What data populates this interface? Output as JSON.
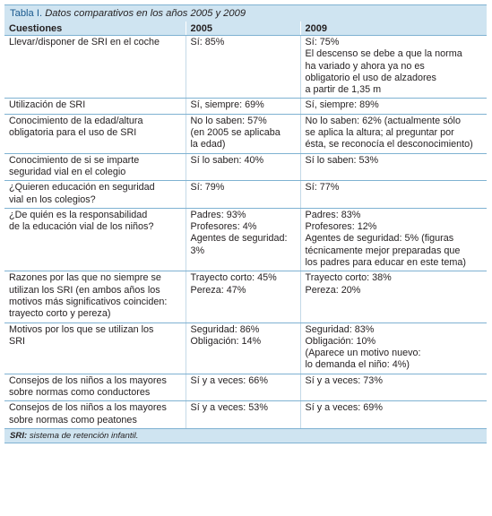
{
  "caption": {
    "label": "Tabla I.",
    "text": "Datos comparativos en los años 2005 y 2009"
  },
  "headers": [
    "Cuestiones",
    "2005",
    "2009"
  ],
  "rows": [
    {
      "question": [
        "Llevar/disponer de SRI en el coche"
      ],
      "y2005": [
        "Sí: 85%"
      ],
      "y2009": [
        "Sí: 75%",
        "El descenso se debe a que la norma",
        "ha variado y ahora ya no es",
        "obligatorio el uso de alzadores",
        "a partir de 1,35 m"
      ]
    },
    {
      "question": [
        "Utilización de SRI"
      ],
      "y2005": [
        "Sí, siempre: 69%"
      ],
      "y2009": [
        "Sí, siempre: 89%"
      ]
    },
    {
      "question": [
        "Conocimiento de la edad/altura",
        "obligatoria para el uso de SRI"
      ],
      "y2005": [
        "No lo saben: 57%",
        "(en 2005 se aplicaba",
        "la edad)"
      ],
      "y2009": [
        "No lo saben: 62% (actualmente sólo",
        "se aplica la altura; al preguntar por",
        "ésta, se reconocía el desconocimiento)"
      ]
    },
    {
      "question": [
        "Conocimiento de si se imparte",
        "seguridad vial en el colegio"
      ],
      "y2005": [
        "Sí lo saben: 40%"
      ],
      "y2009": [
        "Sí lo saben: 53%"
      ]
    },
    {
      "question": [
        "¿Quieren educación en seguridad",
        "vial en los colegios?"
      ],
      "y2005": [
        "Sí: 79%"
      ],
      "y2009": [
        "Sí: 77%"
      ]
    },
    {
      "question": [
        "¿De quién es la responsabilidad",
        "de la educación vial de los niños?"
      ],
      "y2005": [
        "Padres: 93%",
        "Profesores: 4%",
        "Agentes de seguridad:",
        "3%"
      ],
      "y2009": [
        "Padres: 83%",
        "Profesores: 12%",
        "Agentes de seguridad: 5% (figuras",
        "técnicamente mejor preparadas que",
        "los padres para educar en este tema)"
      ]
    },
    {
      "question": [
        "Razones por las que no siempre se",
        "utilizan los SRI (en ambos años los",
        "motivos más significativos coinciden:",
        "trayecto corto y pereza)"
      ],
      "y2005": [
        "Trayecto corto: 45%",
        "Pereza: 47%"
      ],
      "y2009": [
        "Trayecto corto: 38%",
        "Pereza: 20%"
      ]
    },
    {
      "question": [
        "Motivos por los que se utilizan los",
        "SRI"
      ],
      "y2005": [
        "Seguridad: 86%",
        "Obligación: 14%"
      ],
      "y2009": [
        "Seguridad: 83%",
        "Obligación: 10%",
        "(Aparece un motivo nuevo:",
        "lo demanda el niño: 4%)"
      ]
    },
    {
      "question": [
        "Consejos de los niños a los mayores",
        "sobre normas como conductores"
      ],
      "y2005": [
        "Sí y a veces: 66%"
      ],
      "y2009": [
        "Sí y a veces: 73%"
      ]
    },
    {
      "question": [
        "Consejos de los niños a los mayores",
        "sobre normas como peatones"
      ],
      "y2005": [
        "Sí y a veces: 53%"
      ],
      "y2009": [
        "Sí y a veces: 69%"
      ]
    }
  ],
  "footnote": {
    "term": "SRI:",
    "text": "sistema de retención infantil."
  }
}
